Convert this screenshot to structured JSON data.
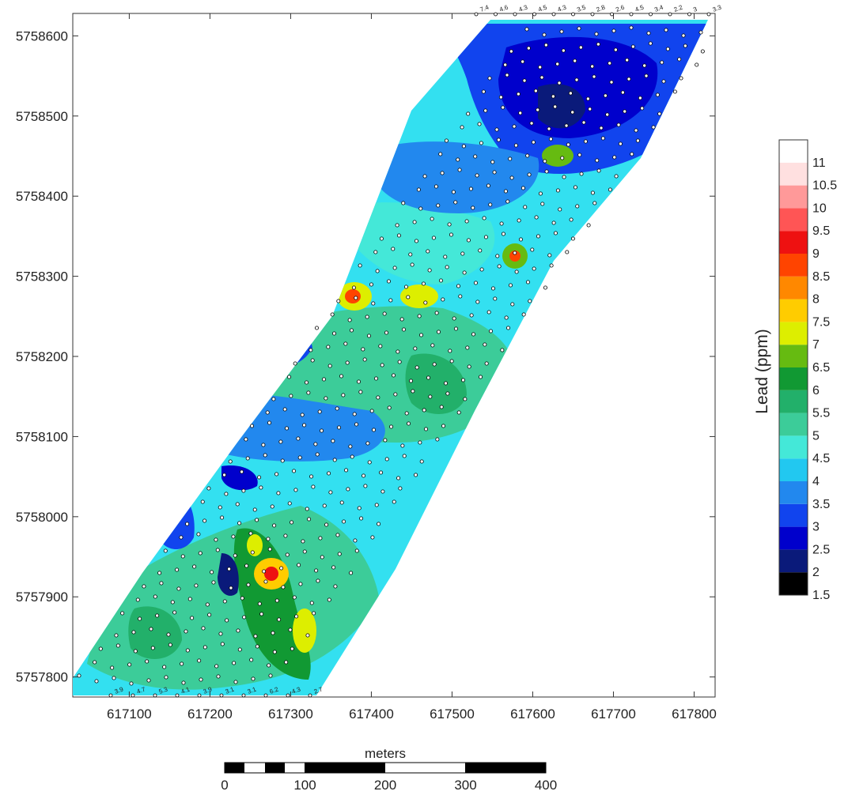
{
  "map": {
    "x_ticks": [
      "617100",
      "617200",
      "617300",
      "617400",
      "617500",
      "617600",
      "617700",
      "617800"
    ],
    "y_ticks": [
      "5758600",
      "5758500",
      "5758400",
      "5758300",
      "5758200",
      "5758100",
      "5758000",
      "5757900",
      "5757800"
    ],
    "x_range": [
      617030,
      617826
    ],
    "y_range": [
      5757775,
      5758628
    ]
  },
  "scale_bar": {
    "title": "meters",
    "labels": [
      "0",
      "100",
      "200",
      "300",
      "400"
    ]
  },
  "colorbar": {
    "title": "Lead (ppm)",
    "levels": [
      "1.5",
      "2",
      "2.5",
      "3",
      "3.5",
      "4",
      "4.5",
      "5",
      "5.5",
      "6",
      "6.5",
      "7",
      "7.5",
      "8",
      "8.5",
      "9",
      "9.5",
      "10",
      "10.5",
      "11"
    ],
    "colors": [
      "#000000",
      "#0a1a7a",
      "#0000cc",
      "#1144ee",
      "#2288ee",
      "#22c8f0",
      "#44e8d8",
      "#3ccc99",
      "#22b06a",
      "#119933",
      "#66bb11",
      "#ddee00",
      "#ffcc00",
      "#ff8800",
      "#ff4400",
      "#ee1111",
      "#ff5555",
      "#ff9999",
      "#ffe0e0",
      "#ffffff"
    ]
  },
  "annotations": {
    "top_values": [
      "7.4",
      "4.6",
      "4.3",
      "4.5",
      "4.3",
      "3.5",
      "2.8",
      "2.6",
      "4.5",
      "3.4",
      "2.2",
      "3",
      "3.3"
    ],
    "bottom_values": [
      "3.9",
      "4.7",
      "5.3",
      "4.1",
      "3.9",
      "3.1",
      "3.1",
      "6.2",
      "4.3",
      "2.7"
    ]
  }
}
